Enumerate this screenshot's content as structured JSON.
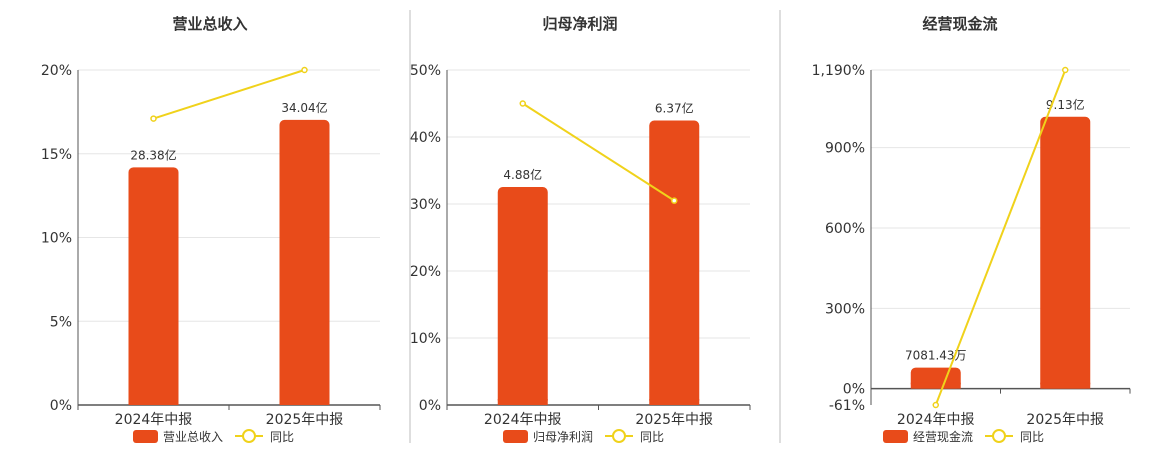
{
  "colors": {
    "bar": "#e84b1a",
    "line": "#f0d21b",
    "grid": "#e6e6e6",
    "axis": "#555555",
    "divider": "#bdbdbd",
    "text": "#333333"
  },
  "legend": {
    "line_name": "同比"
  },
  "chart_data": [
    {
      "type": "bar",
      "title": "营业总收入",
      "categories": [
        "2024年中报",
        "2025年中报"
      ],
      "bar_series": {
        "name": "营业总收入",
        "values": [
          28.38,
          34.04
        ],
        "labels": [
          "28.38亿",
          "34.04亿"
        ]
      },
      "line_series": {
        "name": "同比",
        "values": [
          17.1,
          20.0
        ]
      },
      "y_axis": {
        "min": 0,
        "max": 20,
        "ticks": [
          0,
          5,
          10,
          15,
          20
        ],
        "tick_labels": [
          "0%",
          "5%",
          "10%",
          "15%",
          "20%"
        ]
      },
      "bar_value_range": [
        0,
        40
      ],
      "grid": true,
      "legend_position": "bottom"
    },
    {
      "type": "bar",
      "title": "归母净利润",
      "categories": [
        "2024年中报",
        "2025年中报"
      ],
      "bar_series": {
        "name": "归母净利润",
        "values": [
          4.88,
          6.37
        ],
        "labels": [
          "4.88亿",
          "6.37亿"
        ]
      },
      "line_series": {
        "name": "同比",
        "values": [
          45.0,
          30.5
        ]
      },
      "y_axis": {
        "min": 0,
        "max": 50,
        "ticks": [
          0,
          10,
          20,
          30,
          40,
          50
        ],
        "tick_labels": [
          "0%",
          "10%",
          "20%",
          "30%",
          "40%",
          "50%"
        ]
      },
      "bar_value_range": [
        0,
        7.5
      ],
      "grid": true,
      "legend_position": "bottom"
    },
    {
      "type": "bar",
      "title": "经营现金流",
      "categories": [
        "2024年中报",
        "2025年中报"
      ],
      "bar_series": {
        "name": "经营现金流",
        "values": [
          0.708143,
          9.13
        ],
        "labels": [
          "7081.43万",
          "9.13亿"
        ]
      },
      "line_series": {
        "name": "同比",
        "values": [
          -61,
          1190
        ]
      },
      "y_axis": {
        "min": -61,
        "max": 1190,
        "ticks": [
          -61,
          0,
          300,
          600,
          900,
          1190
        ],
        "tick_labels": [
          "-61%",
          "0%",
          "300%",
          "600%",
          "900%",
          "1,190%"
        ]
      },
      "bar_value_range": [
        0,
        10.7
      ],
      "grid": true,
      "legend_position": "bottom"
    }
  ]
}
